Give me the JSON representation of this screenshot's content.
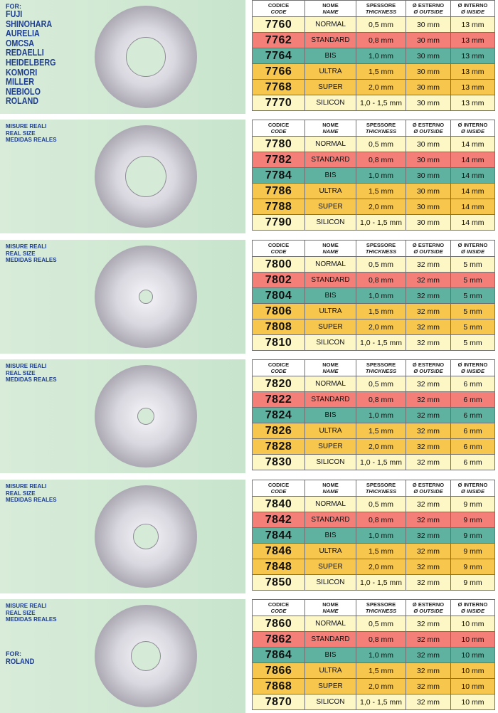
{
  "headers": {
    "code": [
      "CODICE",
      "CODE"
    ],
    "name": [
      "NOME",
      "NAME"
    ],
    "thickness": [
      "SPESSORE",
      "THICKNESS"
    ],
    "outside": [
      "Ø ESTERNO",
      "Ø OUTSIDE"
    ],
    "inside": [
      "Ø INTERNO",
      "Ø INSIDE"
    ]
  },
  "row_colors": [
    "#fdf7c6",
    "#f47f78",
    "#5fb2a0",
    "#f7c64c",
    "#f7c64c",
    "#fdf7c6"
  ],
  "sizes_text": [
    "MISURE REALI",
    "REAL SIZE",
    "MEDIDAS REALES"
  ],
  "top_brands": {
    "label": "FOR:",
    "items": [
      "FUJI",
      "SHINOHARA",
      "AURELIA",
      "OMCSA",
      "REDAELLI",
      "HEIDELBERG",
      "KOMORI",
      "MILLER",
      "NEBIOLO",
      "ROLAND"
    ]
  },
  "bottom_brands": {
    "label": "FOR:",
    "items": [
      "ROLAND"
    ]
  },
  "groups": [
    {
      "disc_icon": "disc-13mm",
      "rows": [
        {
          "code": "7760",
          "name": "NORMAL",
          "thickness": "0,5 mm",
          "outside": "30 mm",
          "inside": "13 mm"
        },
        {
          "code": "7762",
          "name": "STANDARD",
          "thickness": "0,8 mm",
          "outside": "30 mm",
          "inside": "13 mm"
        },
        {
          "code": "7764",
          "name": "BIS",
          "thickness": "1,0 mm",
          "outside": "30 mm",
          "inside": "13 mm"
        },
        {
          "code": "7766",
          "name": "ULTRA",
          "thickness": "1,5 mm",
          "outside": "30 mm",
          "inside": "13 mm"
        },
        {
          "code": "7768",
          "name": "SUPER",
          "thickness": "2,0 mm",
          "outside": "30 mm",
          "inside": "13 mm"
        },
        {
          "code": "7770",
          "name": "SILICON",
          "thickness": "1,0 - 1,5 mm",
          "outside": "30 mm",
          "inside": "13 mm"
        }
      ]
    },
    {
      "disc_icon": "disc-14mm",
      "rows": [
        {
          "code": "7780",
          "name": "NORMAL",
          "thickness": "0,5 mm",
          "outside": "30 mm",
          "inside": "14 mm"
        },
        {
          "code": "7782",
          "name": "STANDARD",
          "thickness": "0,8 mm",
          "outside": "30 mm",
          "inside": "14 mm"
        },
        {
          "code": "7784",
          "name": "BIS",
          "thickness": "1,0 mm",
          "outside": "30 mm",
          "inside": "14 mm"
        },
        {
          "code": "7786",
          "name": "ULTRA",
          "thickness": "1,5 mm",
          "outside": "30 mm",
          "inside": "14 mm"
        },
        {
          "code": "7788",
          "name": "SUPER",
          "thickness": "2,0 mm",
          "outside": "30 mm",
          "inside": "14 mm"
        },
        {
          "code": "7790",
          "name": "SILICON",
          "thickness": "1,0 - 1,5 mm",
          "outside": "30 mm",
          "inside": "14 mm"
        }
      ]
    },
    {
      "disc_icon": "disc-5mm",
      "rows": [
        {
          "code": "7800",
          "name": "NORMAL",
          "thickness": "0,5 mm",
          "outside": "32 mm",
          "inside": "5 mm"
        },
        {
          "code": "7802",
          "name": "STANDARD",
          "thickness": "0,8 mm",
          "outside": "32 mm",
          "inside": "5 mm"
        },
        {
          "code": "7804",
          "name": "BIS",
          "thickness": "1,0 mm",
          "outside": "32 mm",
          "inside": "5 mm"
        },
        {
          "code": "7806",
          "name": "ULTRA",
          "thickness": "1,5 mm",
          "outside": "32 mm",
          "inside": "5 mm"
        },
        {
          "code": "7808",
          "name": "SUPER",
          "thickness": "2,0 mm",
          "outside": "32 mm",
          "inside": "5 mm"
        },
        {
          "code": "7810",
          "name": "SILICON",
          "thickness": "1,0 - 1,5 mm",
          "outside": "32 mm",
          "inside": "5 mm"
        }
      ]
    },
    {
      "disc_icon": "disc-6mm",
      "rows": [
        {
          "code": "7820",
          "name": "NORMAL",
          "thickness": "0,5 mm",
          "outside": "32 mm",
          "inside": "6 mm"
        },
        {
          "code": "7822",
          "name": "STANDARD",
          "thickness": "0,8 mm",
          "outside": "32 mm",
          "inside": "6 mm"
        },
        {
          "code": "7824",
          "name": "BIS",
          "thickness": "1,0 mm",
          "outside": "32 mm",
          "inside": "6 mm"
        },
        {
          "code": "7826",
          "name": "ULTRA",
          "thickness": "1,5 mm",
          "outside": "32 mm",
          "inside": "6 mm"
        },
        {
          "code": "7828",
          "name": "SUPER",
          "thickness": "2,0 mm",
          "outside": "32 mm",
          "inside": "6 mm"
        },
        {
          "code": "7830",
          "name": "SILICON",
          "thickness": "1,0 - 1,5 mm",
          "outside": "32 mm",
          "inside": "6 mm"
        }
      ]
    },
    {
      "disc_icon": "disc-9mm",
      "rows": [
        {
          "code": "7840",
          "name": "NORMAL",
          "thickness": "0,5 mm",
          "outside": "32 mm",
          "inside": "9 mm"
        },
        {
          "code": "7842",
          "name": "STANDARD",
          "thickness": "0,8 mm",
          "outside": "32 mm",
          "inside": "9 mm"
        },
        {
          "code": "7844",
          "name": "BIS",
          "thickness": "1,0 mm",
          "outside": "32 mm",
          "inside": "9 mm"
        },
        {
          "code": "7846",
          "name": "ULTRA",
          "thickness": "1,5 mm",
          "outside": "32 mm",
          "inside": "9 mm"
        },
        {
          "code": "7848",
          "name": "SUPER",
          "thickness": "2,0 mm",
          "outside": "32 mm",
          "inside": "9 mm"
        },
        {
          "code": "7850",
          "name": "SILICON",
          "thickness": "1,0 - 1,5 mm",
          "outside": "32 mm",
          "inside": "9 mm"
        }
      ]
    },
    {
      "disc_icon": "disc-10mm",
      "rows": [
        {
          "code": "7860",
          "name": "NORMAL",
          "thickness": "0,5 mm",
          "outside": "32 mm",
          "inside": "10 mm"
        },
        {
          "code": "7862",
          "name": "STANDARD",
          "thickness": "0,8 mm",
          "outside": "32 mm",
          "inside": "10 mm"
        },
        {
          "code": "7864",
          "name": "BIS",
          "thickness": "1,0 mm",
          "outside": "32 mm",
          "inside": "10 mm"
        },
        {
          "code": "7866",
          "name": "ULTRA",
          "thickness": "1,5 mm",
          "outside": "32 mm",
          "inside": "10 mm"
        },
        {
          "code": "7868",
          "name": "SUPER",
          "thickness": "2,0 mm",
          "outside": "32 mm",
          "inside": "10 mm"
        },
        {
          "code": "7870",
          "name": "SILICON",
          "thickness": "1,0 - 1,5 mm",
          "outside": "32 mm",
          "inside": "10 mm"
        }
      ]
    }
  ]
}
